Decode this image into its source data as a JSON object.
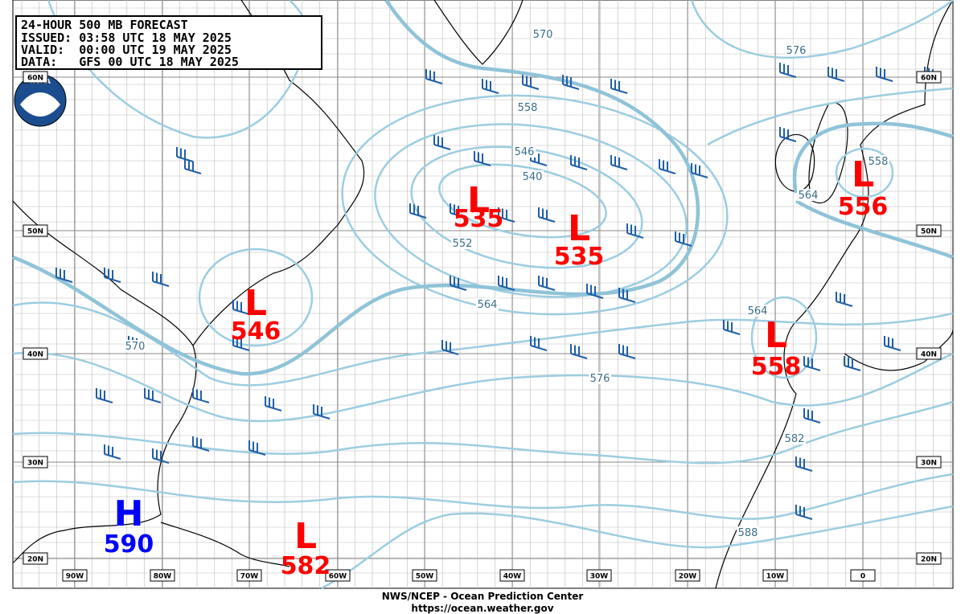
{
  "header": {
    "lines": [
      "24-HOUR 500 MB FORECAST",
      "ISSUED: 03:58 UTC 18 MAY 2025",
      "VALID:  00:00 UTC 19 MAY 2025",
      "DATA:   GFS 00 UTC 18 MAY 2025"
    ]
  },
  "logo": "NOAA",
  "centers": [
    {
      "symbol": "L",
      "value": "535"
    },
    {
      "symbol": "L",
      "value": "535"
    },
    {
      "symbol": "L",
      "value": "546"
    },
    {
      "symbol": "L",
      "value": "556"
    },
    {
      "symbol": "L",
      "value": "558"
    },
    {
      "symbol": "H",
      "value": "590"
    },
    {
      "symbol": "L",
      "value": "582"
    }
  ],
  "contour_labels": [
    "570",
    "576",
    "558",
    "546",
    "540",
    "552",
    "564",
    "570",
    "576",
    "582",
    "588",
    "558",
    "564",
    "564"
  ],
  "left_lat_labels": [
    "60N",
    "50N",
    "40N",
    "30N",
    "20N"
  ],
  "right_lat_labels": [
    "60N",
    "50N",
    "40N",
    "30N",
    "20N"
  ],
  "lon_labels": [
    "90W",
    "80W",
    "70W",
    "60W",
    "50W",
    "40W",
    "30W",
    "20W",
    "10W",
    "0"
  ],
  "footer": {
    "lines": [
      "NWS/NCEP - Ocean Prediction Center",
      "https://ocean.weather.gov"
    ]
  }
}
